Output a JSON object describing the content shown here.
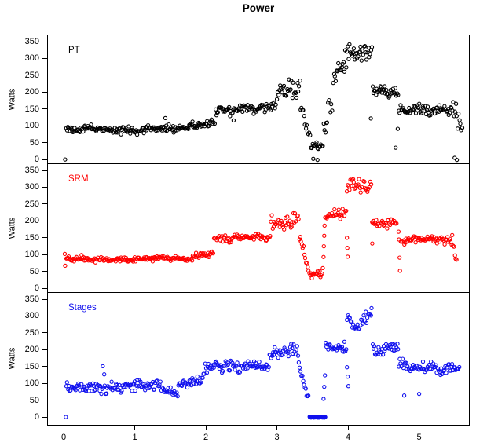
{
  "chart_data": {
    "type": "scatter",
    "title": "Power",
    "xlabel": "",
    "ylabel": "Watts",
    "marker": "open-circle",
    "grid": false,
    "x_ticks": [
      0,
      1,
      2,
      3,
      4,
      5
    ],
    "y_ticks": [
      0,
      50,
      100,
      150,
      200,
      250,
      300,
      350
    ],
    "xlim": [
      -0.23,
      5.72
    ],
    "ylim": [
      0,
      350
    ],
    "sample_interval_hours": 0.012,
    "legend_position": "top-left-inside-each-panel",
    "panels": [
      {
        "label": "PT",
        "color": "#000000",
        "segments": [
          [
            0.02,
            1.75,
            90,
            92,
            7
          ],
          [
            1.75,
            2.12,
            102,
            112,
            8
          ],
          [
            2.12,
            2.92,
            149,
            153,
            10
          ],
          [
            2.92,
            3.02,
            158,
            190,
            12
          ],
          [
            3.02,
            3.32,
            212,
            212,
            20
          ],
          [
            3.32,
            3.46,
            160,
            70,
            14
          ],
          [
            3.46,
            3.64,
            48,
            40,
            9
          ],
          [
            3.64,
            3.8,
            80,
            210,
            38
          ],
          [
            3.8,
            3.97,
            240,
            285,
            25
          ],
          [
            3.97,
            4.33,
            315,
            312,
            18
          ],
          [
            4.33,
            4.7,
            210,
            205,
            12
          ],
          [
            4.7,
            5.45,
            150,
            148,
            10
          ],
          [
            5.45,
            5.6,
            148,
            118,
            30
          ]
        ],
        "outliers": [
          [
            0.01,
            2
          ],
          [
            1.42,
            125
          ],
          [
            2.38,
            118
          ],
          [
            3.5,
            4
          ],
          [
            3.56,
            1
          ],
          [
            4.31,
            124
          ],
          [
            4.66,
            37
          ],
          [
            4.69,
            93
          ],
          [
            5.49,
            7
          ],
          [
            5.52,
            1
          ]
        ]
      },
      {
        "label": "SRM",
        "color": "#FF0000",
        "segments": [
          [
            0.02,
            1.8,
            88,
            90,
            5
          ],
          [
            1.8,
            2.1,
            98,
            108,
            6
          ],
          [
            2.1,
            2.9,
            149,
            151,
            7
          ],
          [
            2.9,
            3.3,
            196,
            208,
            16
          ],
          [
            3.3,
            3.44,
            150,
            62,
            13
          ],
          [
            3.44,
            3.63,
            45,
            40,
            8
          ],
          [
            3.66,
            3.97,
            219,
            222,
            11
          ],
          [
            3.97,
            4.32,
            307,
            310,
            15
          ],
          [
            4.32,
            4.68,
            198,
            196,
            9
          ],
          [
            4.73,
            5.44,
            143,
            146,
            7
          ],
          [
            5.44,
            5.52,
            148,
            88,
            22
          ]
        ],
        "outliers": [
          [
            0.005,
            104
          ],
          [
            0.01,
            69
          ],
          [
            3.635,
            62
          ],
          [
            3.645,
            95
          ],
          [
            3.65,
            127
          ],
          [
            3.655,
            158
          ],
          [
            3.66,
            188
          ],
          [
            3.975,
            152
          ],
          [
            3.98,
            122
          ],
          [
            3.985,
            96
          ],
          [
            4.33,
            135
          ],
          [
            4.7,
            170
          ],
          [
            4.705,
            147
          ],
          [
            4.715,
            93
          ],
          [
            4.72,
            54
          ]
        ]
      },
      {
        "label": "Stages",
        "color": "#1111EE",
        "segments": [
          [
            0.02,
            0.5,
            88,
            92,
            10
          ],
          [
            0.5,
            1.38,
            90,
            94,
            11
          ],
          [
            1.38,
            1.6,
            80,
            76,
            9
          ],
          [
            1.6,
            1.95,
            102,
            116,
            10
          ],
          [
            1.95,
            2.88,
            150,
            153,
            12
          ],
          [
            2.88,
            3.28,
            188,
            205,
            14
          ],
          [
            3.28,
            3.44,
            165,
            60,
            14
          ],
          [
            3.45,
            3.67,
            2,
            2,
            1,
            0.0035
          ],
          [
            3.67,
            3.97,
            206,
            210,
            11
          ],
          [
            3.97,
            4.12,
            300,
            268,
            14
          ],
          [
            4.12,
            4.33,
            278,
            308,
            14
          ],
          [
            4.33,
            4.7,
            202,
            206,
            12
          ],
          [
            4.7,
            4.86,
            168,
            148,
            13
          ],
          [
            4.86,
            5.56,
            150,
            147,
            12
          ]
        ],
        "outliers": [
          [
            0.02,
            2
          ],
          [
            0.54,
            153
          ],
          [
            0.56,
            129
          ],
          [
            3.645,
            56
          ],
          [
            3.655,
            92
          ],
          [
            3.665,
            126
          ],
          [
            3.975,
            150
          ],
          [
            3.985,
            122
          ],
          [
            3.995,
            94
          ],
          [
            4.78,
            66
          ],
          [
            4.99,
            71
          ]
        ]
      }
    ]
  }
}
